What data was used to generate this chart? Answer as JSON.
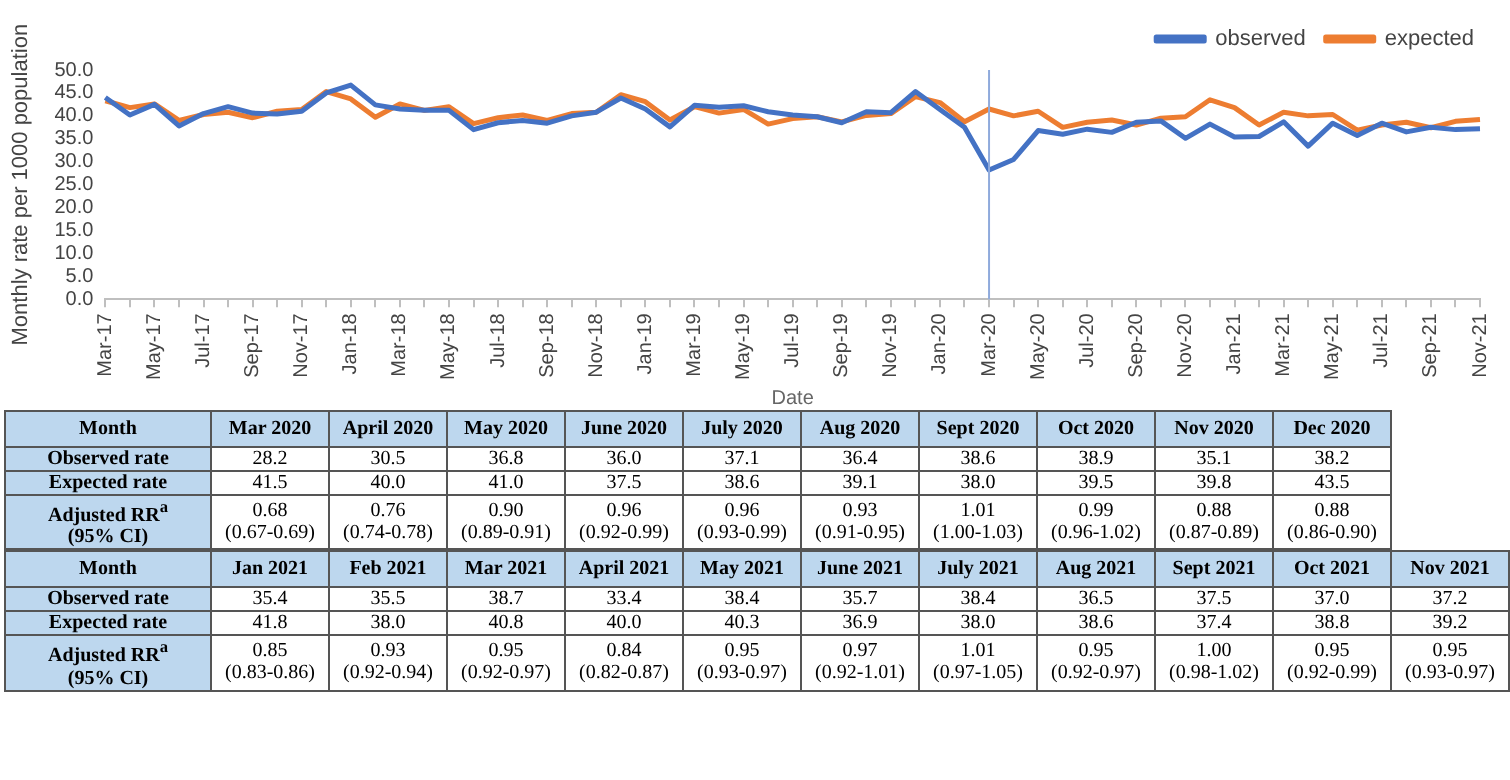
{
  "chart_data": {
    "type": "line",
    "xlabel": "Date",
    "ylabel": "Monthly rate per 1000 population",
    "categories": [
      "Mar-17",
      null,
      "May-17",
      null,
      "Jul-17",
      null,
      "Sep-17",
      null,
      "Nov-17",
      null,
      "Jan-18",
      null,
      "Mar-18",
      null,
      "May-18",
      null,
      "Jul-18",
      null,
      "Sep-18",
      null,
      "Nov-18",
      null,
      "Jan-19",
      null,
      "Mar-19",
      null,
      "May-19",
      null,
      "Jul-19",
      null,
      "Sep-19",
      null,
      "Nov-19",
      null,
      "Jan-20",
      null,
      "Mar-20",
      null,
      "May-20",
      null,
      "Jul-20",
      null,
      "Sep-20",
      null,
      "Nov-20",
      null,
      "Jan-21",
      null,
      "Mar-21",
      null,
      "May-21",
      null,
      "Jul-21",
      null,
      "Sep-21",
      null,
      "Nov-21"
    ],
    "series": [
      {
        "name": "observed",
        "color": "#4472c4",
        "values": [
          44,
          40.2,
          42.5,
          37.8,
          40.5,
          42,
          40.6,
          40.4,
          41,
          45,
          46.7,
          42.4,
          41.5,
          41.2,
          41.2,
          37,
          38.5,
          39,
          38.4,
          40,
          40.8,
          43.9,
          41.5,
          37.6,
          42.3,
          41.9,
          42.2,
          40.9,
          40.2,
          39.8,
          38.5,
          40.9,
          40.7,
          45.3,
          41.4,
          37.5,
          28.2,
          30.5,
          36.8,
          36.0,
          37.1,
          36.4,
          38.6,
          38.9,
          35.1,
          38.2,
          35.4,
          35.5,
          38.7,
          33.4,
          38.4,
          35.7,
          38.4,
          36.5,
          37.5,
          37.0,
          37.2
        ]
      },
      {
        "name": "expected",
        "color": "#ed7d31",
        "values": [
          43.3,
          41.8,
          42.6,
          39,
          40.3,
          40.8,
          39.6,
          41,
          41.4,
          45.3,
          43.7,
          39.7,
          42.6,
          41.2,
          42,
          38.3,
          39.6,
          40.2,
          39,
          40.5,
          40.8,
          44.6,
          43.1,
          39.1,
          42,
          40.6,
          41.4,
          38.2,
          39.4,
          39.8,
          38.7,
          40.1,
          40.5,
          44.2,
          42.9,
          38.7,
          41.5,
          40.0,
          41.0,
          37.5,
          38.6,
          39.1,
          38.0,
          39.5,
          39.8,
          43.5,
          41.8,
          38.0,
          40.8,
          40.0,
          40.3,
          36.9,
          38.0,
          38.6,
          37.4,
          38.8,
          39.2
        ]
      }
    ],
    "ylim": [
      0,
      50
    ],
    "yticks": [
      {
        "value": 0,
        "label": "0.0"
      },
      {
        "value": 5,
        "label": "5.0"
      },
      {
        "value": 10,
        "label": "10.0"
      },
      {
        "value": 15,
        "label": "15.0"
      },
      {
        "value": 20,
        "label": "20.0"
      },
      {
        "value": 25,
        "label": "25.0"
      },
      {
        "value": 30,
        "label": "30.0"
      },
      {
        "value": 35,
        "label": "35.0"
      },
      {
        "value": 40,
        "label": "40.0"
      },
      {
        "value": 45,
        "label": "45.0"
      },
      {
        "value": 50,
        "label": "50.0"
      }
    ],
    "ref_lines": [
      {
        "axis": "x",
        "value": "Mar-20",
        "color": "#8faadc"
      }
    ],
    "grid": false,
    "legend": "top right",
    "marker": "none",
    "line_style": "solid",
    "annotations": [
      "Month",
      "Mar 2020",
      "April 2020",
      "May 2020",
      "June 2020",
      "July 2020",
      "Aug 2020",
      "Sept 2020",
      "Oct 2020",
      "Nov 2020",
      "Dec 2020",
      "Observed rate",
      "28.2",
      "30.5",
      "36.8",
      "36.0",
      "37.1",
      "36.4",
      "38.6",
      "38.9",
      "35.1",
      "38.2",
      "Expected rate",
      "41.5",
      "40.0",
      "41.0",
      "37.5",
      "38.6",
      "39.1",
      "38.0",
      "39.5",
      "39.8",
      "43.5",
      "Adjusted RR$^{a}$\n(95% CI)",
      "0.68\n(0.67-0.69)",
      "0.76\n(0.74-0.78)",
      "0.90\n(0.89-0.91)",
      "0.96\n(0.92-0.99)",
      "0.96\n(0.93-0.99)",
      "0.93\n(0.91-0.95)",
      "1.01\n(1.00-1.03)",
      "0.99\n(0.96-1.02)",
      "0.88\n(0.87-0.89)",
      "0.88\n(0.86-0.90)",
      "Month",
      "Jan 2021",
      "Feb 2021",
      "Mar 2021",
      "April 2021",
      "May 2021",
      "June 2021",
      "July 2021",
      "Aug 2021",
      "Sept 2021",
      "Oct 2021",
      "Nov 2021",
      "Observed rate",
      "35.4",
      "35.5",
      "38.7",
      "33.4",
      "38.4",
      "35.7",
      "38.4",
      "36.5",
      "37.5",
      "37.0",
      "37.2",
      "Expected rate",
      "41.8",
      "38.0",
      "40.8",
      "40.0",
      "40.3",
      "36.9",
      "38.0",
      "38.6",
      "37.4",
      "38.8",
      "39.2",
      "Adjusted RR$^{a}$\n(95% CI)",
      "0.85\n(0.83-0.86)",
      "0.93\n(0.92-0.94)",
      "0.95\n(0.92-0.97)",
      "0.84\n(0.82-0.87)",
      "0.95\n(0.93-0.97)",
      "0.97\n(0.92-1.01)",
      "1.01\n(0.97-1.05)",
      "0.95\n(0.92-0.97)",
      "1.00\n(0.98-1.02)",
      "0.95\n(0.92-0.99)",
      "0.95\n(0.93-0.97)"
    ]
  }
}
